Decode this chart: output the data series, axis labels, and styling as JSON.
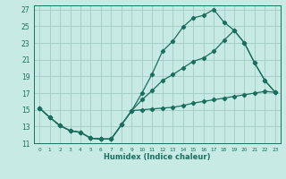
{
  "title": "",
  "xlabel": "Humidex (Indice chaleur)",
  "bg_color": "#c8eae4",
  "grid_color": "#a0ccc4",
  "line_color": "#1a6e5e",
  "xlim": [
    -0.5,
    23.5
  ],
  "ylim": [
    11,
    27.5
  ],
  "xticks": [
    0,
    1,
    2,
    3,
    4,
    5,
    6,
    7,
    8,
    9,
    10,
    11,
    12,
    13,
    14,
    15,
    16,
    17,
    18,
    19,
    20,
    21,
    22,
    23
  ],
  "yticks": [
    11,
    13,
    15,
    17,
    19,
    21,
    23,
    25,
    27
  ],
  "line1_x": [
    0,
    1,
    2,
    3,
    4,
    5,
    6,
    7,
    8,
    9,
    10,
    11,
    12,
    13,
    14,
    15,
    16,
    17,
    18,
    19,
    20,
    21,
    22,
    23
  ],
  "line1_y": [
    15.2,
    14.1,
    13.1,
    12.5,
    12.3,
    11.6,
    11.5,
    11.5,
    13.2,
    14.9,
    17.0,
    19.3,
    22.0,
    23.2,
    24.9,
    26.0,
    26.3,
    27.0,
    25.5,
    24.5,
    23.0,
    20.6,
    18.5,
    17.1
  ],
  "line2_x": [
    0,
    1,
    2,
    3,
    4,
    5,
    6,
    7,
    8,
    9,
    10,
    11,
    12,
    13,
    14,
    15,
    16,
    17,
    18,
    19,
    20,
    21,
    22,
    23
  ],
  "line2_y": [
    15.2,
    14.1,
    13.1,
    12.5,
    12.3,
    11.6,
    11.5,
    11.5,
    13.2,
    14.9,
    16.2,
    17.3,
    18.5,
    19.2,
    20.0,
    20.8,
    21.2,
    22.0,
    23.3,
    24.5,
    23.0,
    20.6,
    18.5,
    17.1
  ],
  "line3_x": [
    0,
    1,
    2,
    3,
    4,
    5,
    6,
    7,
    8,
    9,
    10,
    11,
    12,
    13,
    14,
    15,
    16,
    17,
    18,
    19,
    20,
    21,
    22,
    23
  ],
  "line3_y": [
    15.2,
    14.1,
    13.1,
    12.5,
    12.3,
    11.6,
    11.5,
    11.5,
    13.2,
    14.9,
    15.0,
    15.1,
    15.2,
    15.3,
    15.5,
    15.8,
    16.0,
    16.2,
    16.4,
    16.6,
    16.8,
    17.0,
    17.2,
    17.1
  ],
  "marker": "D",
  "marker_size": 2.2,
  "line_width": 0.9
}
